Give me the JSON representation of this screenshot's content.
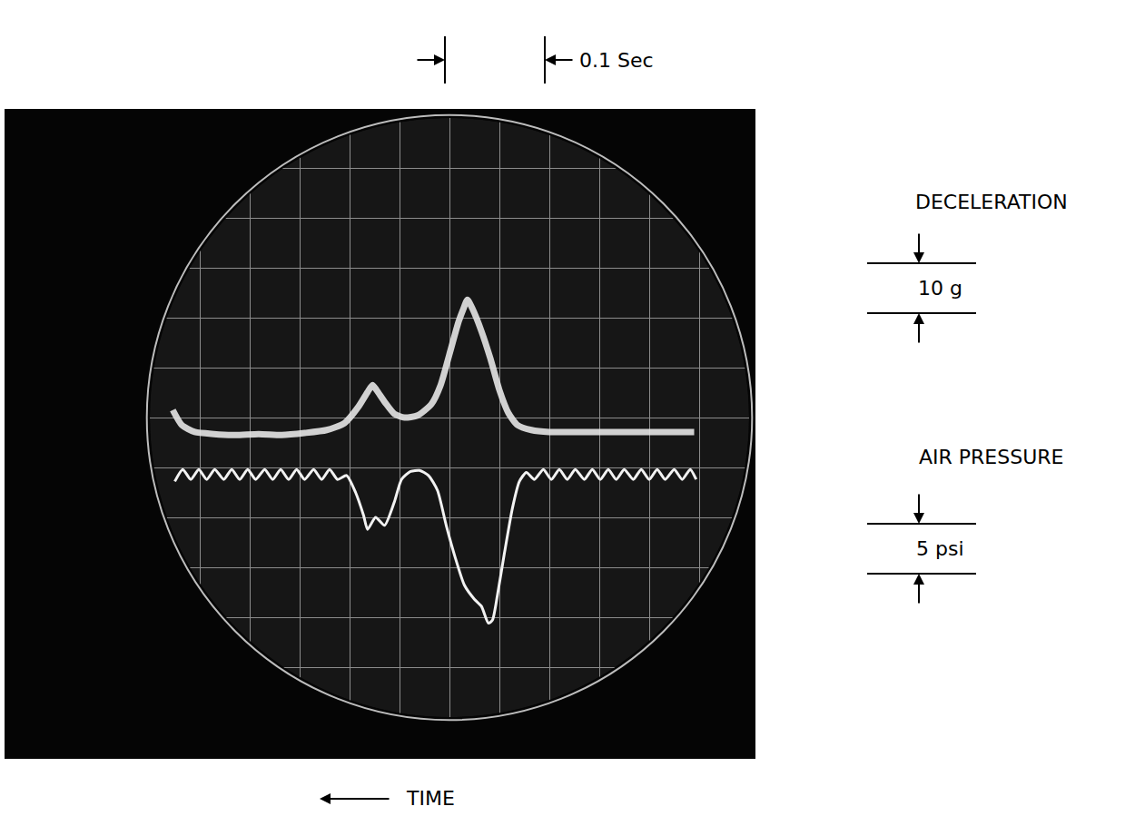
{
  "chart_data": {
    "type": "line",
    "x_label": "TIME",
    "xlim": [
      0.6,
      0
    ],
    "xticks": [
      0,
      0.05,
      0.1,
      0.15,
      0.2,
      0.25,
      0.3,
      0.35,
      0.4,
      0.45,
      0.5,
      0.55,
      0.6
    ],
    "ylim": [
      -60,
      60
    ],
    "yticks": [
      -60,
      -50,
      -40,
      -30,
      -20,
      -10,
      0,
      10,
      20,
      30,
      40,
      50,
      60
    ],
    "y2lim": [
      -30,
      30
    ],
    "y2ticks": [
      -30,
      -25,
      -20,
      -15,
      -10,
      -5,
      0,
      5,
      10,
      15,
      20,
      25,
      30
    ],
    "grid": true,
    "tick_labels": false,
    "series": [
      {
        "name": "DECELERATION",
        "color": "#e6e6e6",
        "x": [
          0.577,
          0.568,
          0.555,
          0.536,
          0.514,
          0.491,
          0.468,
          0.445,
          0.423,
          0.405,
          0.391,
          0.382,
          0.377,
          0.373,
          0.364,
          0.355,
          0.345,
          0.332,
          0.318,
          0.309,
          0.3,
          0.291,
          0.286,
          0.282,
          0.277,
          0.268,
          0.259,
          0.25,
          0.241,
          0.232,
          0.218,
          0.2,
          0.164,
          0.127,
          0.091,
          0.055
        ],
        "values": [
          1.5,
          -1.5,
          -2.9,
          -3.3,
          -3.5,
          -3.3,
          -3.5,
          -3.1,
          -2.5,
          -1.1,
          2.2,
          5.1,
          6.5,
          5.5,
          2.9,
          0.7,
          0,
          0.4,
          2.7,
          6.4,
          12.7,
          19.1,
          21.8,
          23.6,
          21.8,
          17.3,
          11.8,
          5.5,
          0.9,
          -1.5,
          -2.5,
          -2.9,
          -2.9,
          -2.9,
          -2.9,
          -2.9
        ]
      },
      {
        "name": "AIR PRESSURE",
        "color": "#f2f2f2",
        "axis": "y2",
        "x": [
          0.575,
          0.567,
          0.559,
          0.551,
          0.543,
          0.535,
          0.526,
          0.518,
          0.51,
          0.502,
          0.494,
          0.485,
          0.477,
          0.469,
          0.461,
          0.453,
          0.445,
          0.436,
          0.428,
          0.42,
          0.412,
          0.403,
          0.394,
          0.386,
          0.382,
          0.374,
          0.365,
          0.355,
          0.348,
          0.339,
          0.33,
          0.321,
          0.312,
          0.303,
          0.294,
          0.285,
          0.275,
          0.268,
          0.261,
          0.257,
          0.252,
          0.245,
          0.237,
          0.23,
          0.223,
          0.215,
          0.206,
          0.198,
          0.19,
          0.182,
          0.174,
          0.165,
          0.157,
          0.149,
          0.141,
          0.133,
          0.125,
          0.116,
          0.108,
          0.1,
          0.092,
          0.084,
          0.075,
          0.067,
          0.059,
          0.053
        ],
        "values": [
          -6.4,
          -5.2,
          -6.2,
          -5.2,
          -6.2,
          -5.2,
          -6.2,
          -5.2,
          -6.2,
          -5.2,
          -6.2,
          -5.2,
          -6.2,
          -5.2,
          -6.2,
          -5.2,
          -6.2,
          -5.2,
          -6.2,
          -5.2,
          -6.2,
          -5.8,
          -7.5,
          -9.8,
          -11.2,
          -10.0,
          -10.8,
          -8.4,
          -6.2,
          -5.4,
          -5.3,
          -5.8,
          -7.3,
          -10.9,
          -14.1,
          -16.8,
          -18.2,
          -18.9,
          -20.6,
          -20.3,
          -17.8,
          -13.6,
          -9.1,
          -6.4,
          -5.5,
          -6.2,
          -5.2,
          -6.2,
          -5.2,
          -6.2,
          -5.2,
          -6.2,
          -5.2,
          -6.2,
          -5.2,
          -6.2,
          -5.2,
          -6.2,
          -5.2,
          -6.2,
          -5.2,
          -6.2,
          -5.2,
          -6.2,
          -5.2,
          -6.2
        ]
      }
    ],
    "scale_bars": [
      {
        "label": "0.1 Sec",
        "value": 0.1,
        "axis": "x"
      },
      {
        "label": "10 g",
        "value": 10,
        "axis": "y"
      },
      {
        "label": "5 psi",
        "value": 5,
        "axis": "y2"
      }
    ]
  }
}
